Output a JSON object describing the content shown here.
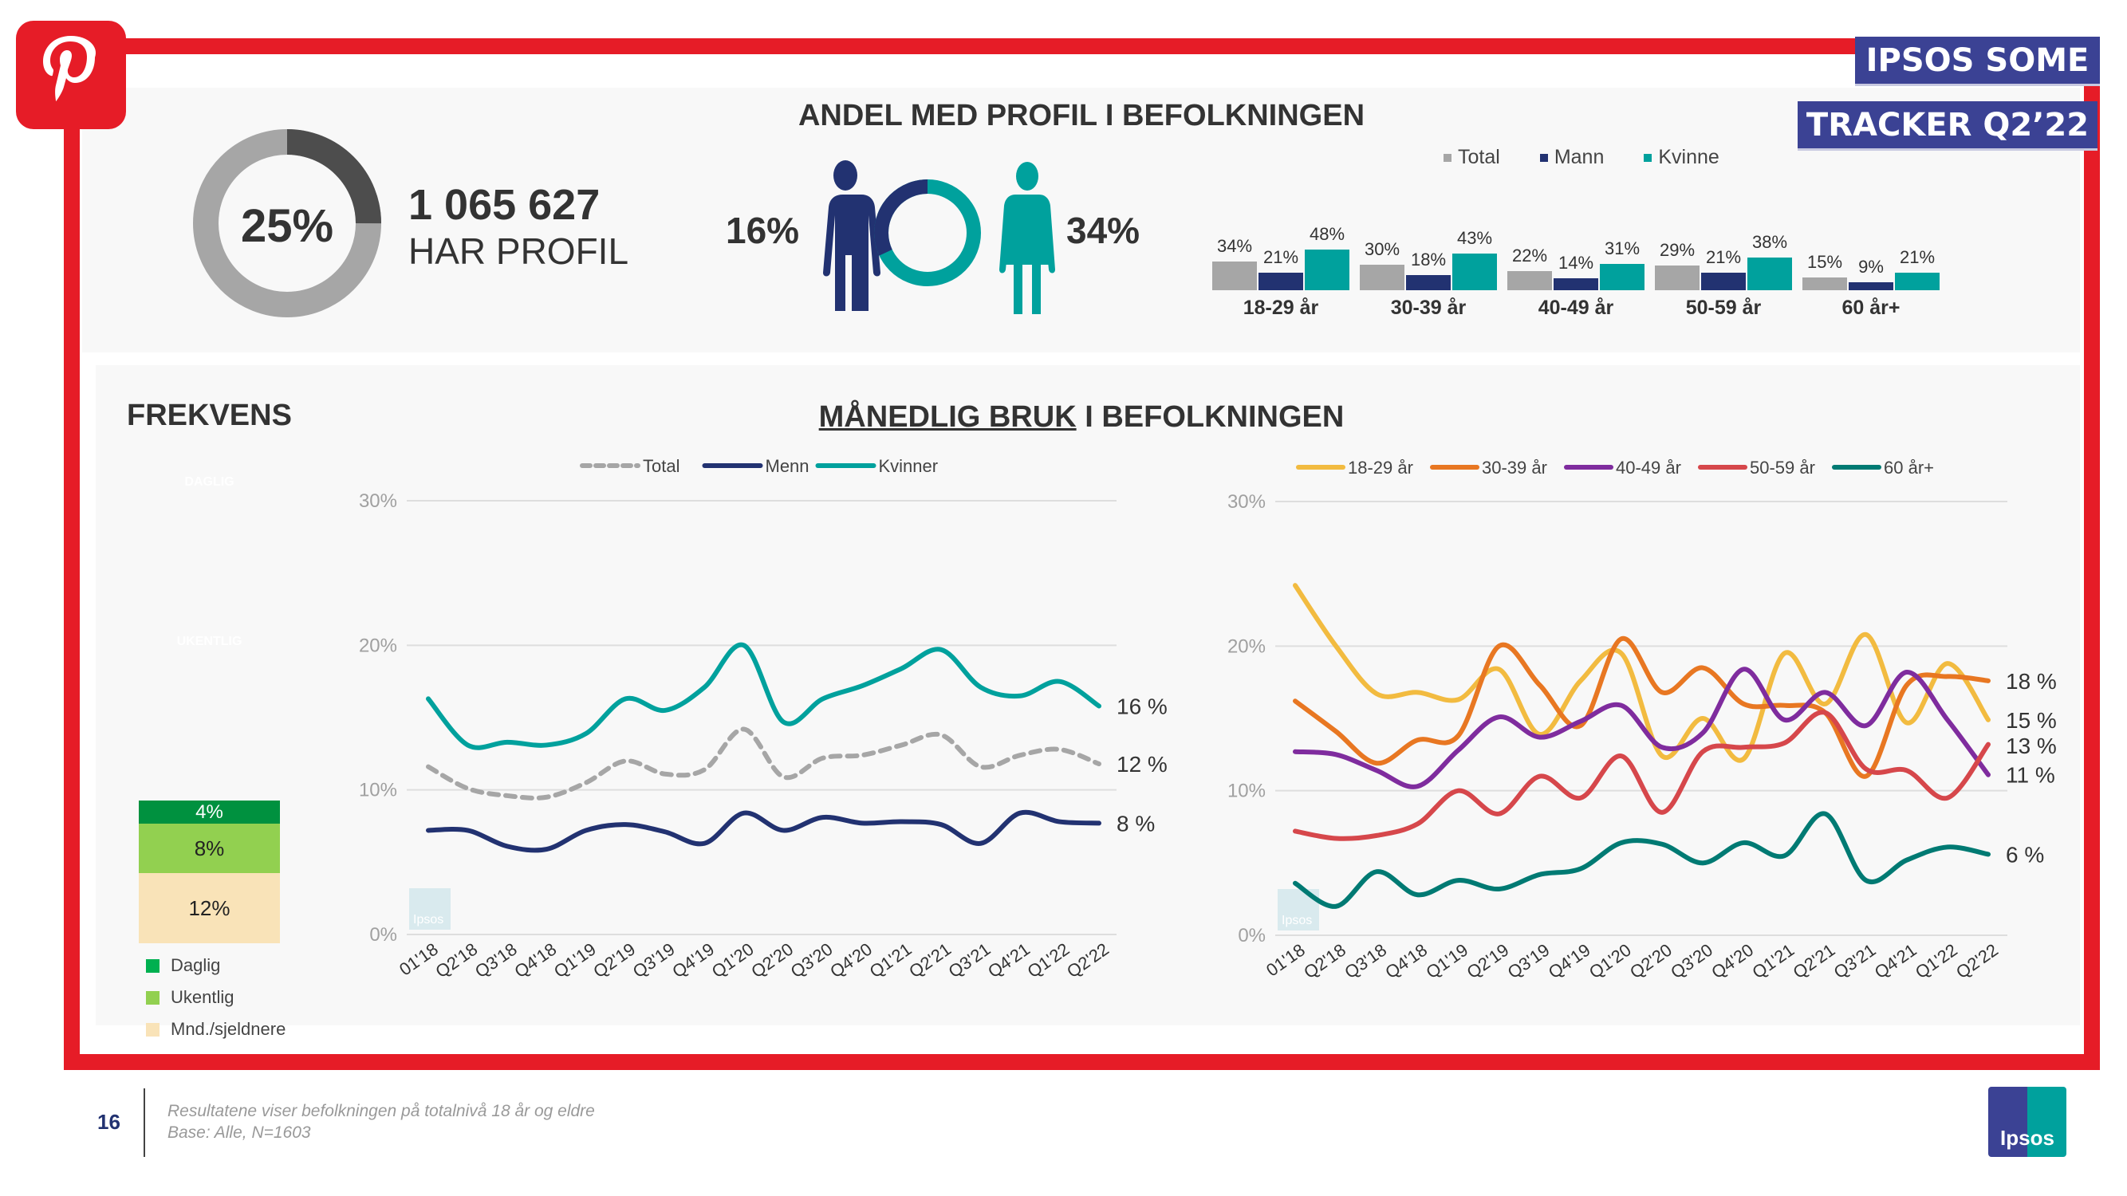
{
  "header": {
    "tag_line1": "IPSOS SOME",
    "tag_line2": "TRACKER Q2’22",
    "brand_color": "#e61c27",
    "tag_color": "#3b4294"
  },
  "profile": {
    "title": "ANDEL MED PROFIL I BEFOLKNINGEN",
    "donut_percent_label": "25%",
    "donut_value": 25,
    "count": "1 065 627",
    "count_label": "HAR PROFIL",
    "men_label": "16%",
    "women_label": "34%",
    "men_value": 16,
    "women_value": 34
  },
  "frekvens": {
    "title": "FREKVENS",
    "ghost_labels": [
      "DAGLIG",
      "UKENTLIG"
    ],
    "segments": [
      {
        "label": "Daglig",
        "value": 4,
        "text": "4%",
        "color": "#00913f"
      },
      {
        "label": "Ukentlig",
        "value": 8,
        "text": "8%",
        "color": "#92d050"
      },
      {
        "label": "Mnd./sjeldnere",
        "value": 12,
        "text": "12%",
        "color": "#f9e3b8"
      }
    ]
  },
  "monthly": {
    "title_underlined": "MÅNEDLIG BRUK",
    "title_rest": " I BEFOLKNINGEN"
  },
  "chart_data": [
    {
      "type": "bar",
      "title": "ANDEL MED PROFIL I BEFOLKNINGEN",
      "categories": [
        "18-29 år",
        "30-39 år",
        "40-49 år",
        "50-59 år",
        "60 år+"
      ],
      "series": [
        {
          "name": "Total",
          "color": "#a6a6a6",
          "values": [
            34,
            30,
            22,
            29,
            15
          ]
        },
        {
          "name": "Mann",
          "color": "#223271",
          "values": [
            21,
            18,
            14,
            21,
            9
          ]
        },
        {
          "name": "Kvinne",
          "color": "#00a19d",
          "values": [
            48,
            43,
            31,
            38,
            21
          ]
        }
      ],
      "legend": "top"
    },
    {
      "type": "line",
      "x": [
        "01'18",
        "Q2'18",
        "Q3'18",
        "Q4'18",
        "Q1'19",
        "Q2'19",
        "Q3'19",
        "Q4'19",
        "Q1'20",
        "Q2'20",
        "Q3'20",
        "Q4'20",
        "Q1'21",
        "Q2'21",
        "Q3'21",
        "Q4'21",
        "Q1'22",
        "Q2'22"
      ],
      "yticks": [
        "0%",
        "10%",
        "20%",
        "30%"
      ],
      "ylim": [
        0,
        30
      ],
      "legend": "top",
      "series": [
        {
          "name": "Total",
          "color": "#a6a6a6",
          "dashed": true,
          "end_label": "12 %",
          "values": [
            11.6,
            10.1,
            9.6,
            9.5,
            10.5,
            12.0,
            11.1,
            11.4,
            14.2,
            10.9,
            12.2,
            12.4,
            13.1,
            13.8,
            11.6,
            12.4,
            12.8,
            11.8
          ]
        },
        {
          "name": "Menn",
          "color": "#223271",
          "dashed": false,
          "end_label": "8 %",
          "values": [
            7.2,
            7.2,
            6.1,
            5.9,
            7.2,
            7.6,
            7.1,
            6.3,
            8.4,
            7.2,
            8.1,
            7.7,
            7.8,
            7.6,
            6.3,
            8.4,
            7.8,
            7.7
          ]
        },
        {
          "name": "Kvinner",
          "color": "#00a19d",
          "dashed": false,
          "end_label": "16 %",
          "values": [
            16.3,
            13.1,
            13.3,
            13.1,
            13.9,
            16.3,
            15.5,
            17.1,
            20.0,
            14.7,
            16.3,
            17.2,
            18.4,
            19.7,
            17.1,
            16.5,
            17.5,
            15.8
          ]
        }
      ]
    },
    {
      "type": "line",
      "x": [
        "01'18",
        "Q2'18",
        "Q3'18",
        "Q4'18",
        "Q1'19",
        "Q2'19",
        "Q3'19",
        "Q4'19",
        "Q1'20",
        "Q2'20",
        "Q3'20",
        "Q4'20",
        "Q1'21",
        "Q2'21",
        "Q3'21",
        "Q4'21",
        "Q1'22",
        "Q2'22"
      ],
      "yticks": [
        "0%",
        "10%",
        "20%",
        "30%"
      ],
      "ylim": [
        0,
        30
      ],
      "legend": "top",
      "series": [
        {
          "name": "18-29 år",
          "color": "#f2bb40",
          "dashed": false,
          "end_label": "15 %",
          "values": [
            24.2,
            20.0,
            16.7,
            16.8,
            16.3,
            18.4,
            13.9,
            17.6,
            19.5,
            12.4,
            15.0,
            12.2,
            19.5,
            16.0,
            20.8,
            14.7,
            18.8,
            14.9
          ]
        },
        {
          "name": "30-39 år",
          "color": "#e87722",
          "dashed": false,
          "end_label": "18 %",
          "values": [
            16.2,
            14.1,
            11.9,
            13.5,
            13.8,
            20.0,
            17.3,
            14.5,
            20.5,
            16.8,
            18.5,
            16.0,
            15.9,
            15.4,
            11.0,
            17.3,
            17.9,
            17.6
          ]
        },
        {
          "name": "40-49 år",
          "color": "#7f2c9e",
          "dashed": false,
          "end_label": "11 %",
          "values": [
            12.7,
            12.5,
            11.4,
            10.3,
            12.8,
            15.1,
            13.7,
            14.8,
            15.9,
            13.0,
            14.0,
            18.4,
            14.9,
            16.8,
            14.5,
            18.2,
            14.9,
            11.1
          ]
        },
        {
          "name": "50-59 år",
          "color": "#d6474b",
          "dashed": false,
          "end_label": "13 %",
          "values": [
            7.2,
            6.7,
            6.9,
            7.7,
            10.0,
            8.4,
            11.0,
            9.5,
            12.4,
            8.5,
            12.7,
            13.0,
            13.3,
            15.4,
            11.5,
            11.4,
            9.5,
            13.2
          ]
        },
        {
          "name": "60 år+",
          "color": "#007a73",
          "dashed": false,
          "end_label": "6 %",
          "values": [
            3.6,
            2.0,
            4.4,
            2.8,
            3.8,
            3.2,
            4.2,
            4.6,
            6.4,
            6.3,
            5.0,
            6.4,
            5.5,
            8.4,
            3.8,
            5.2,
            6.1,
            5.6
          ]
        }
      ]
    }
  ],
  "footer": {
    "page_number": "16",
    "note1": "Resultatene viser befolkningen på totalnivå 18 år og eldre",
    "note2": "Base: Alle, N=1603",
    "logo_text": "Ipsos"
  }
}
